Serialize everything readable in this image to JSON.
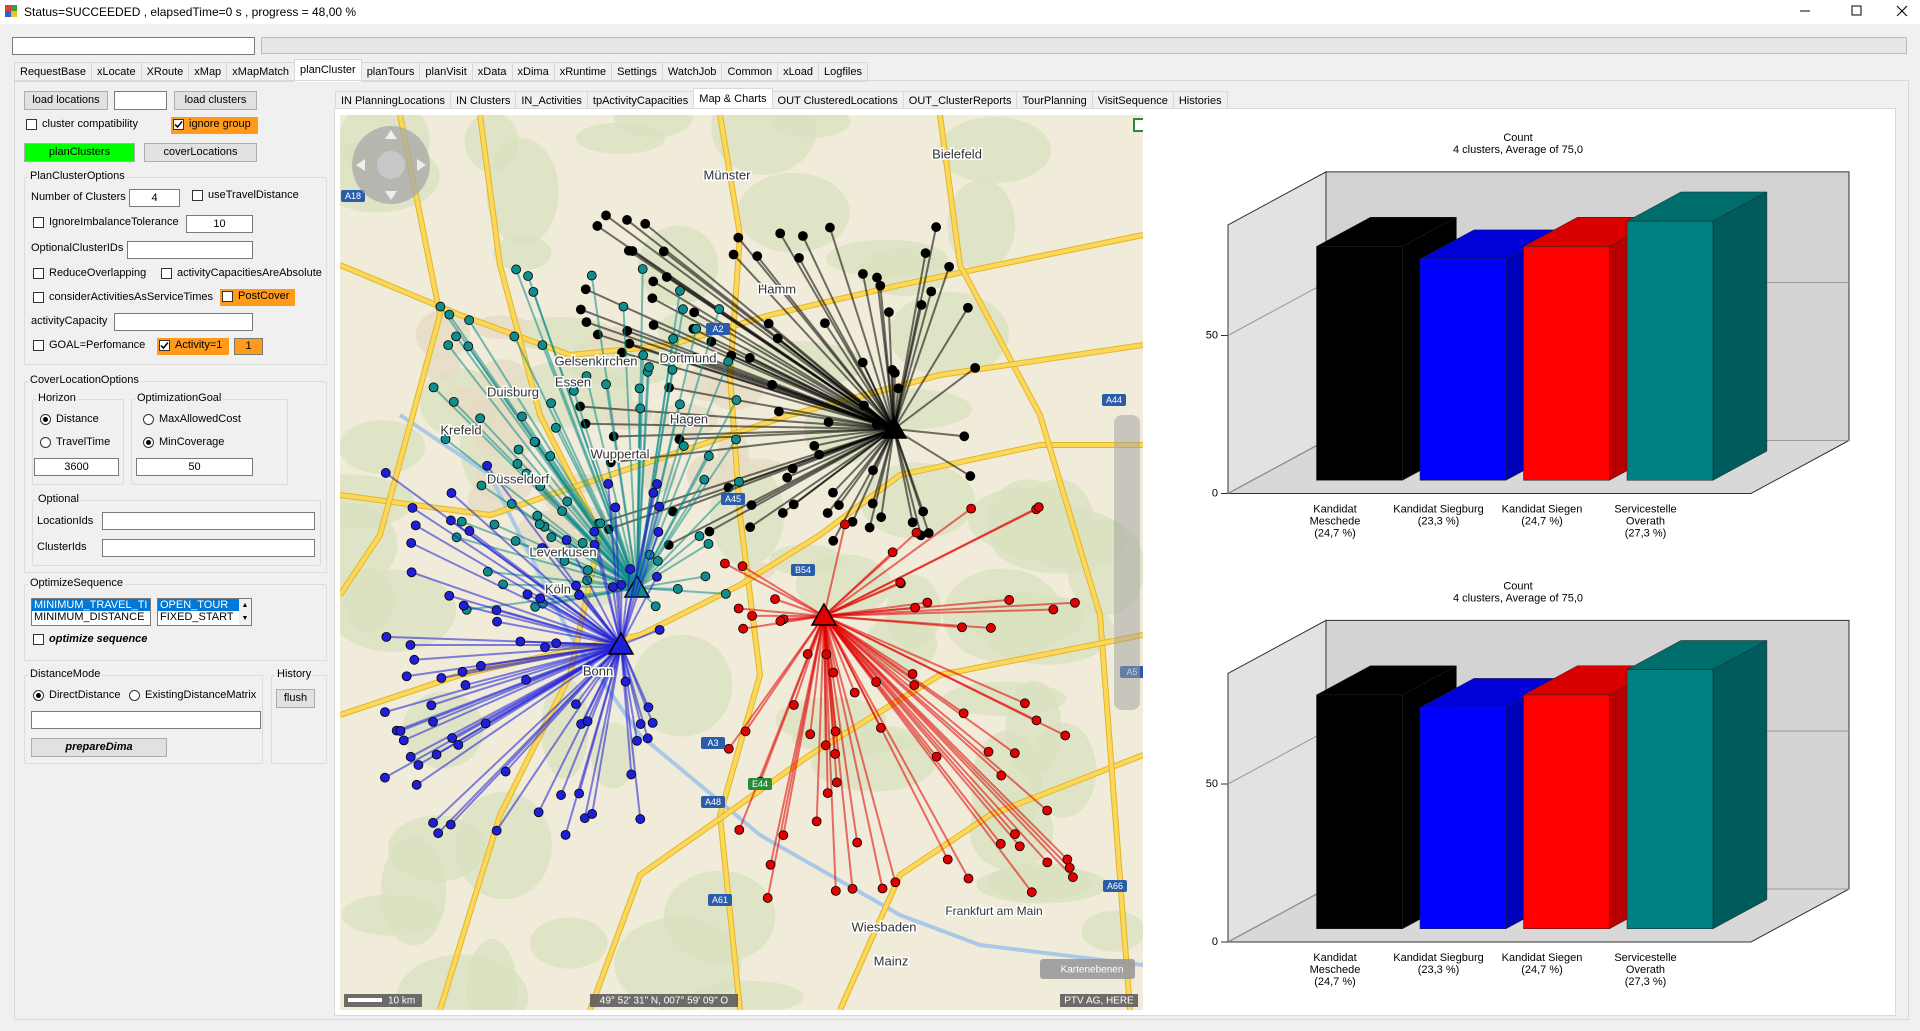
{
  "window": {
    "title": "Status=SUCCEEDED , elapsedTime=0 s , progress = 48,00 %"
  },
  "main_tabs": [
    "RequestBase",
    "xLocate",
    "XRoute",
    "xMap",
    "xMapMatch",
    "planCluster",
    "planTours",
    "planVisit",
    "xData",
    "xDima",
    "xRuntime",
    "Settings",
    "WatchJob",
    "Common",
    "xLoad",
    "Logfiles"
  ],
  "sub_tabs": [
    "IN PlanningLocations",
    "IN Clusters",
    "IN_Activities",
    "tpActivityCapacities",
    "Map & Charts",
    "OUT ClusteredLocations",
    "OUT_ClusterReports",
    "TourPlanning",
    "VisitSequence",
    "Histories"
  ],
  "left_panel": {
    "load_locations": "load locations",
    "load_clusters": "load clusters",
    "cluster_compatibility": "cluster compatibility",
    "ignore_group": "ignore group",
    "plan_clusters": "planClusters",
    "cover_locations": "coverLocations",
    "plan_cluster_options": {
      "title": "PlanClusterOptions",
      "number_of_clusters_label": "Number of Clusters",
      "number_of_clusters": 4,
      "use_travel_distance": "useTravelDistance",
      "ignore_imbalance_tolerance": "IgnoreImbalanceTolerance",
      "imbalance_tolerance": 10,
      "optional_cluster_ids": "OptionalClusterIDs",
      "reduce_overlapping": "ReduceOverlapping",
      "activity_capacities_absolute": "activityCapacitiesAreAbsolute",
      "consider_activities": "considerActivitiesAsServiceTimes",
      "post_cover": "PostCover",
      "activity_capacity": "activityCapacity",
      "goal_performance": "GOAL=Perfomance",
      "activity_1": "Activity=1",
      "activity_value": 1
    },
    "cover_location_options": {
      "title": "CoverLocationOptions",
      "horizon": "Horizon",
      "distance": "Distance",
      "travel_time": "TravelTime",
      "horizon_value": 3600,
      "optimization_goal": "OptimizationGoal",
      "max_allowed_cost": "MaxAllowedCost",
      "min_coverage": "MinCoverage",
      "goal_value": 50,
      "optional": "Optional",
      "location_ids": "LocationIds",
      "cluster_ids": "ClusterIds"
    },
    "optimize_sequence": {
      "title": "OptimizeSequence",
      "list1": [
        "MINIMUM_TRAVEL_TI",
        "MINIMUM_DISTANCE"
      ],
      "list2": [
        "OPEN_TOUR",
        "FIXED_START"
      ],
      "optimize": "optimize sequence"
    },
    "distance_mode": {
      "title": "DistanceMode",
      "direct": "DirectDistance",
      "existing": "ExistingDistanceMatrix",
      "prepare": "prepareDima"
    },
    "history": {
      "title": "History",
      "flush": "flush"
    }
  },
  "map": {
    "cities": [
      "Münster",
      "Bielefeld",
      "Hamm",
      "Dortmund",
      "Gelsenkirchen",
      "Essen",
      "Duisburg",
      "Hagen",
      "Krefeld",
      "Wuppertal",
      "Düsseldorf",
      "Leverkusen",
      "Köln",
      "Bonn",
      "Wiesbaden",
      "Frankfurt am Main",
      "Mainz"
    ],
    "roads": [
      "A18",
      "A2",
      "A44",
      "A45",
      "B54",
      "A3",
      "E44",
      "A48",
      "A61",
      "A66",
      "A5"
    ],
    "layers": "Kartenebenen",
    "scale": "10 km",
    "coordinates": "49° 52' 31\" N, 007° 59' 09\" O",
    "copyright": "PTV AG, HERE"
  },
  "chart_data": [
    {
      "type": "bar3d",
      "title": "Count",
      "subtitle": "4 clusters, Average of 75,0",
      "categories": [
        [
          "Kandidat",
          "Meschede"
        ],
        [
          "Kandidat Siegburg"
        ],
        [
          "Kandidat Siegen"
        ],
        [
          "Servicestelle",
          "Overath"
        ]
      ],
      "shares": [
        "(24,7 %)",
        "(23,3 %)",
        "(24,7 %)",
        "(27,3 %)"
      ],
      "values": [
        74,
        70,
        74,
        82
      ],
      "colors": [
        "#000000",
        "#0000ff",
        "#ff0000",
        "#008080"
      ],
      "ylim": [
        0,
        85
      ],
      "yticks": [
        0,
        50
      ]
    },
    {
      "type": "bar3d",
      "title": "Count",
      "subtitle": "4 clusters, Average of 75,0",
      "categories": [
        [
          "Kandidat",
          "Meschede"
        ],
        [
          "Kandidat Siegburg"
        ],
        [
          "Kandidat Siegen"
        ],
        [
          "Servicestelle",
          "Overath"
        ]
      ],
      "shares": [
        "(24,7 %)",
        "(23,3 %)",
        "(24,7 %)",
        "(27,3 %)"
      ],
      "values": [
        74,
        70,
        74,
        82
      ],
      "colors": [
        "#000000",
        "#0000ff",
        "#ff0000",
        "#008080"
      ],
      "ylim": [
        0,
        85
      ],
      "yticks": [
        0,
        50
      ]
    }
  ]
}
